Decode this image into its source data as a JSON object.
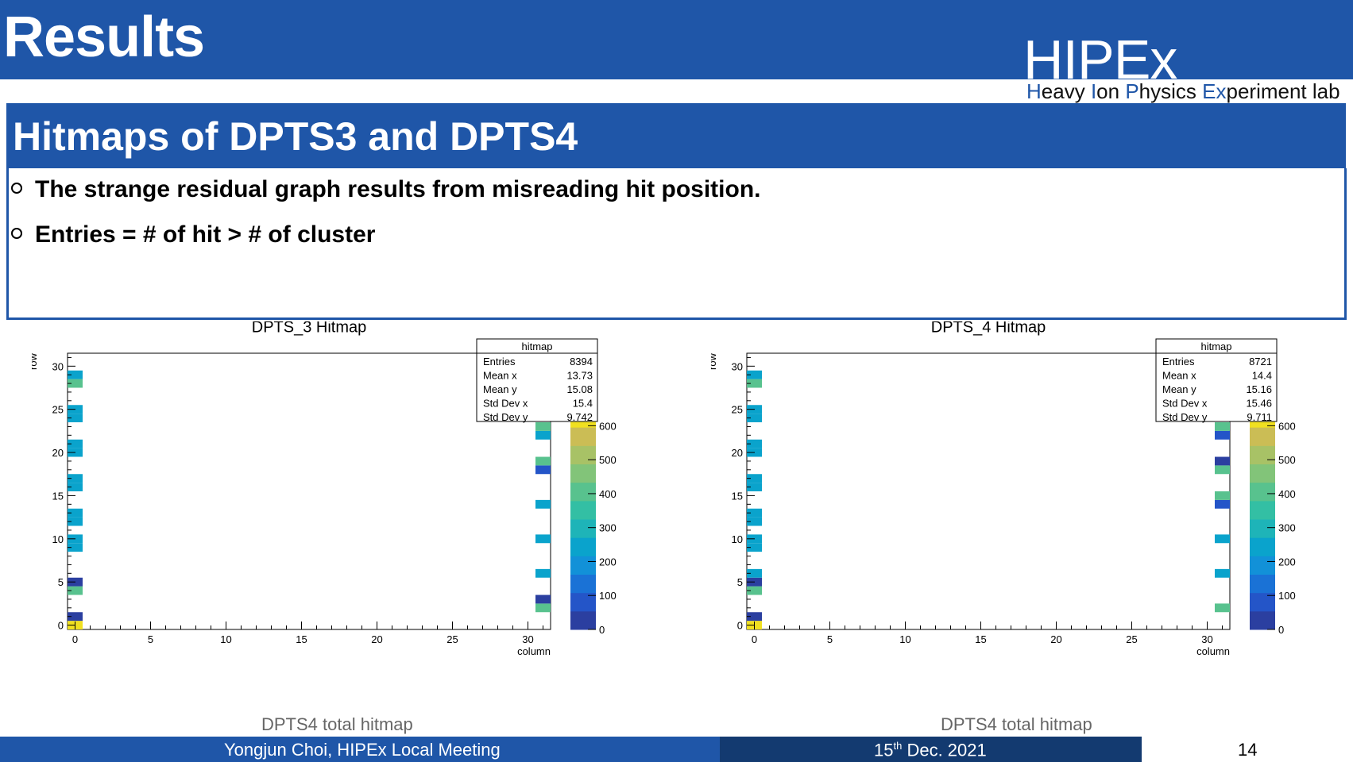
{
  "header": {
    "title": "Results",
    "logo_big": "HIPEx",
    "logo_tagline_parts": [
      {
        "text": "H",
        "accent": true
      },
      {
        "text": "eavy ",
        "accent": false
      },
      {
        "text": "I",
        "accent": true
      },
      {
        "text": "on ",
        "accent": false
      },
      {
        "text": "P",
        "accent": true
      },
      {
        "text": "hysics ",
        "accent": false
      },
      {
        "text": "Ex",
        "accent": true
      },
      {
        "text": "periment lab",
        "accent": false
      }
    ]
  },
  "section": {
    "title": "Hitmaps of DPTS3 and DPTS4",
    "bullets": [
      "The strange residual graph results from misreading hit position.",
      "Entries = # of hit > # of cluster"
    ]
  },
  "chart_data": [
    {
      "type": "heatmap",
      "title": "DPTS_3 Hitmap",
      "xlabel": "column",
      "ylabel": "row",
      "xlim": [
        0,
        31
      ],
      "ylim": [
        0,
        31
      ],
      "xticks": [
        0,
        5,
        10,
        15,
        20,
        25,
        30
      ],
      "yticks": [
        0,
        5,
        10,
        15,
        20,
        25,
        30
      ],
      "zticks": [
        0,
        100,
        200,
        300,
        400,
        500,
        600
      ],
      "zlim": [
        0,
        650
      ],
      "stats": {
        "name": "hitmap",
        "rows": [
          {
            "label": "Entries",
            "value": "8394"
          },
          {
            "label": "Mean x",
            "value": "13.73"
          },
          {
            "label": "Mean y",
            "value": "15.08"
          },
          {
            "label": "Std Dev x",
            "value": "15.4"
          },
          {
            "label": "Std Dev y",
            "value": "9.742"
          }
        ]
      },
      "cells": [
        {
          "x": 0,
          "y": 0,
          "z": 640
        },
        {
          "x": 0,
          "y": 1,
          "z": 50
        },
        {
          "x": 0,
          "y": 4,
          "z": 380
        },
        {
          "x": 0,
          "y": 5,
          "z": 50
        },
        {
          "x": 0,
          "y": 9,
          "z": 230
        },
        {
          "x": 0,
          "y": 10,
          "z": 230
        },
        {
          "x": 0,
          "y": 12,
          "z": 230
        },
        {
          "x": 0,
          "y": 13,
          "z": 230
        },
        {
          "x": 0,
          "y": 16,
          "z": 230
        },
        {
          "x": 0,
          "y": 17,
          "z": 230
        },
        {
          "x": 0,
          "y": 20,
          "z": 230
        },
        {
          "x": 0,
          "y": 21,
          "z": 230
        },
        {
          "x": 0,
          "y": 24,
          "z": 230
        },
        {
          "x": 0,
          "y": 25,
          "z": 230
        },
        {
          "x": 0,
          "y": 28,
          "z": 380
        },
        {
          "x": 0,
          "y": 29,
          "z": 230
        },
        {
          "x": 31,
          "y": 2,
          "z": 380
        },
        {
          "x": 31,
          "y": 3,
          "z": 50
        },
        {
          "x": 31,
          "y": 6,
          "z": 230
        },
        {
          "x": 31,
          "y": 10,
          "z": 230
        },
        {
          "x": 31,
          "y": 14,
          "z": 230
        },
        {
          "x": 31,
          "y": 18,
          "z": 80
        },
        {
          "x": 31,
          "y": 19,
          "z": 430
        },
        {
          "x": 31,
          "y": 22,
          "z": 230
        },
        {
          "x": 31,
          "y": 23,
          "z": 420
        }
      ]
    },
    {
      "type": "heatmap",
      "title": "DPTS_4 Hitmap",
      "xlabel": "column",
      "ylabel": "row",
      "xlim": [
        0,
        31
      ],
      "ylim": [
        0,
        31
      ],
      "xticks": [
        0,
        5,
        10,
        15,
        20,
        25,
        30
      ],
      "yticks": [
        0,
        5,
        10,
        15,
        20,
        25,
        30
      ],
      "zticks": [
        0,
        100,
        200,
        300,
        400,
        500,
        600
      ],
      "zlim": [
        0,
        650
      ],
      "stats": {
        "name": "hitmap",
        "rows": [
          {
            "label": "Entries",
            "value": "8721"
          },
          {
            "label": "Mean x",
            "value": "14.4"
          },
          {
            "label": "Mean y",
            "value": "15.16"
          },
          {
            "label": "Std Dev x",
            "value": "15.46"
          },
          {
            "label": "Std Dev y",
            "value": "9.711"
          }
        ]
      },
      "cells": [
        {
          "x": 0,
          "y": 0,
          "z": 640
        },
        {
          "x": 0,
          "y": 1,
          "z": 50
        },
        {
          "x": 0,
          "y": 4,
          "z": 380
        },
        {
          "x": 0,
          "y": 5,
          "z": 50
        },
        {
          "x": 0,
          "y": 6,
          "z": 230
        },
        {
          "x": 0,
          "y": 9,
          "z": 230
        },
        {
          "x": 0,
          "y": 10,
          "z": 230
        },
        {
          "x": 0,
          "y": 12,
          "z": 230
        },
        {
          "x": 0,
          "y": 13,
          "z": 230
        },
        {
          "x": 0,
          "y": 16,
          "z": 230
        },
        {
          "x": 0,
          "y": 17,
          "z": 230
        },
        {
          "x": 0,
          "y": 20,
          "z": 230
        },
        {
          "x": 0,
          "y": 21,
          "z": 230
        },
        {
          "x": 0,
          "y": 24,
          "z": 230
        },
        {
          "x": 0,
          "y": 25,
          "z": 230
        },
        {
          "x": 0,
          "y": 28,
          "z": 380
        },
        {
          "x": 0,
          "y": 29,
          "z": 230
        },
        {
          "x": 31,
          "y": 2,
          "z": 380
        },
        {
          "x": 31,
          "y": 6,
          "z": 230
        },
        {
          "x": 31,
          "y": 10,
          "z": 230
        },
        {
          "x": 31,
          "y": 14,
          "z": 80
        },
        {
          "x": 31,
          "y": 15,
          "z": 380
        },
        {
          "x": 31,
          "y": 18,
          "z": 380
        },
        {
          "x": 31,
          "y": 19,
          "z": 50
        },
        {
          "x": 31,
          "y": 22,
          "z": 100
        },
        {
          "x": 31,
          "y": 23,
          "z": 400
        }
      ]
    }
  ],
  "captions": [
    "DPTS4 total hitmap",
    "DPTS4 total hitmap"
  ],
  "footer": {
    "presenter": "Yongjun Choi, HIPEx Local Meeting",
    "date_day": "15",
    "date_suffix": "th",
    "date_rest": " Dec. 2021",
    "page": "14"
  }
}
